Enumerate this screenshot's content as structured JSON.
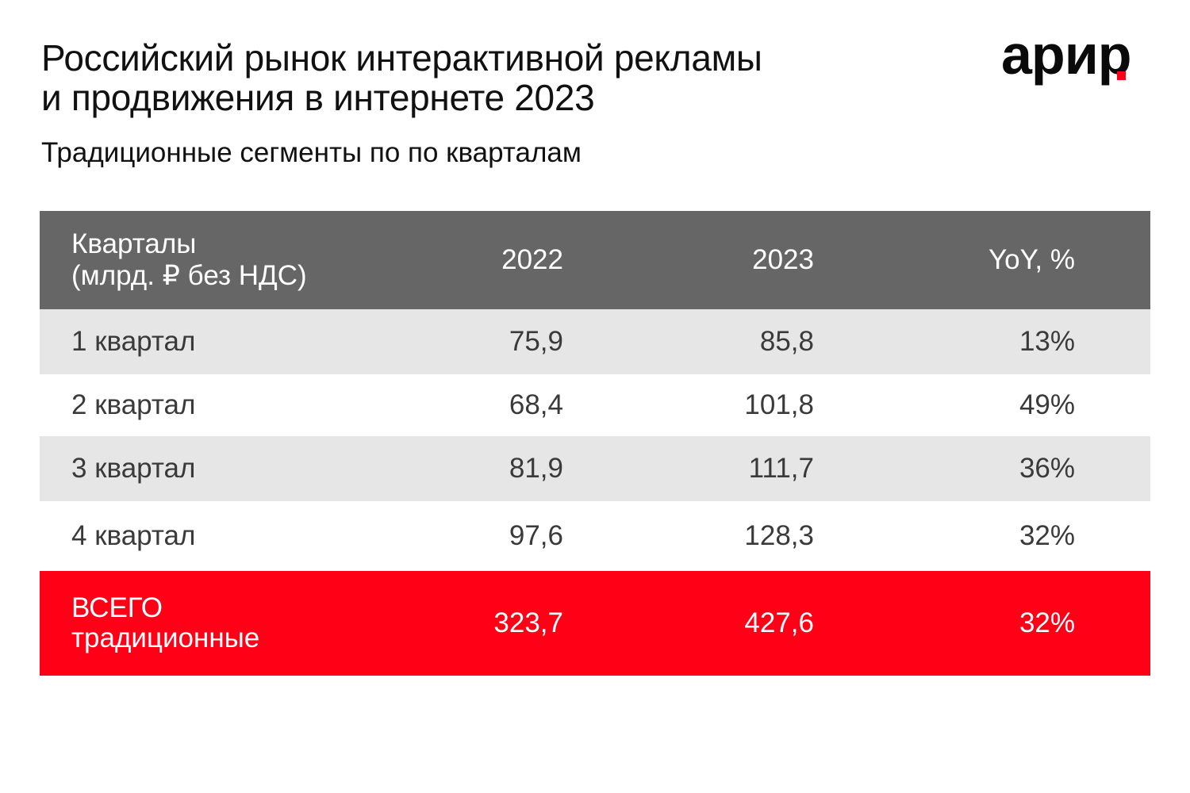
{
  "title": {
    "line1": "Российский рынок интерактивной рекламы",
    "line2": "и продвижения в интернете 2023"
  },
  "subtitle": "Традиционные сегменты по по кварталам",
  "logo": {
    "text": "арир",
    "accent_color": "#ff0017"
  },
  "table": {
    "header": {
      "label_line1": "Кварталы",
      "label_line2": "(млрд. ₽ без НДС)",
      "col_2022": "2022",
      "col_2023": "2023",
      "col_yoy": "YoY, %"
    },
    "rows": [
      {
        "label": "1 квартал",
        "v2022": "75,9",
        "v2023": "85,8",
        "yoy": "13%"
      },
      {
        "label": "2 квартал",
        "v2022": "68,4",
        "v2023": "101,8",
        "yoy": "49%"
      },
      {
        "label": "3 квартал",
        "v2022": "81,9",
        "v2023": "111,7",
        "yoy": "36%"
      },
      {
        "label": "4 квартал",
        "v2022": "97,6",
        "v2023": "128,3",
        "yoy": "32%"
      }
    ],
    "total": {
      "label_line1": "ВСЕГО",
      "label_line2": "традиционные",
      "v2022": "323,7",
      "v2023": "427,6",
      "yoy": "32%"
    }
  },
  "colors": {
    "header_bg": "#666666",
    "stripe_bg": "#e6e6e6",
    "total_bg": "#ff0017"
  }
}
